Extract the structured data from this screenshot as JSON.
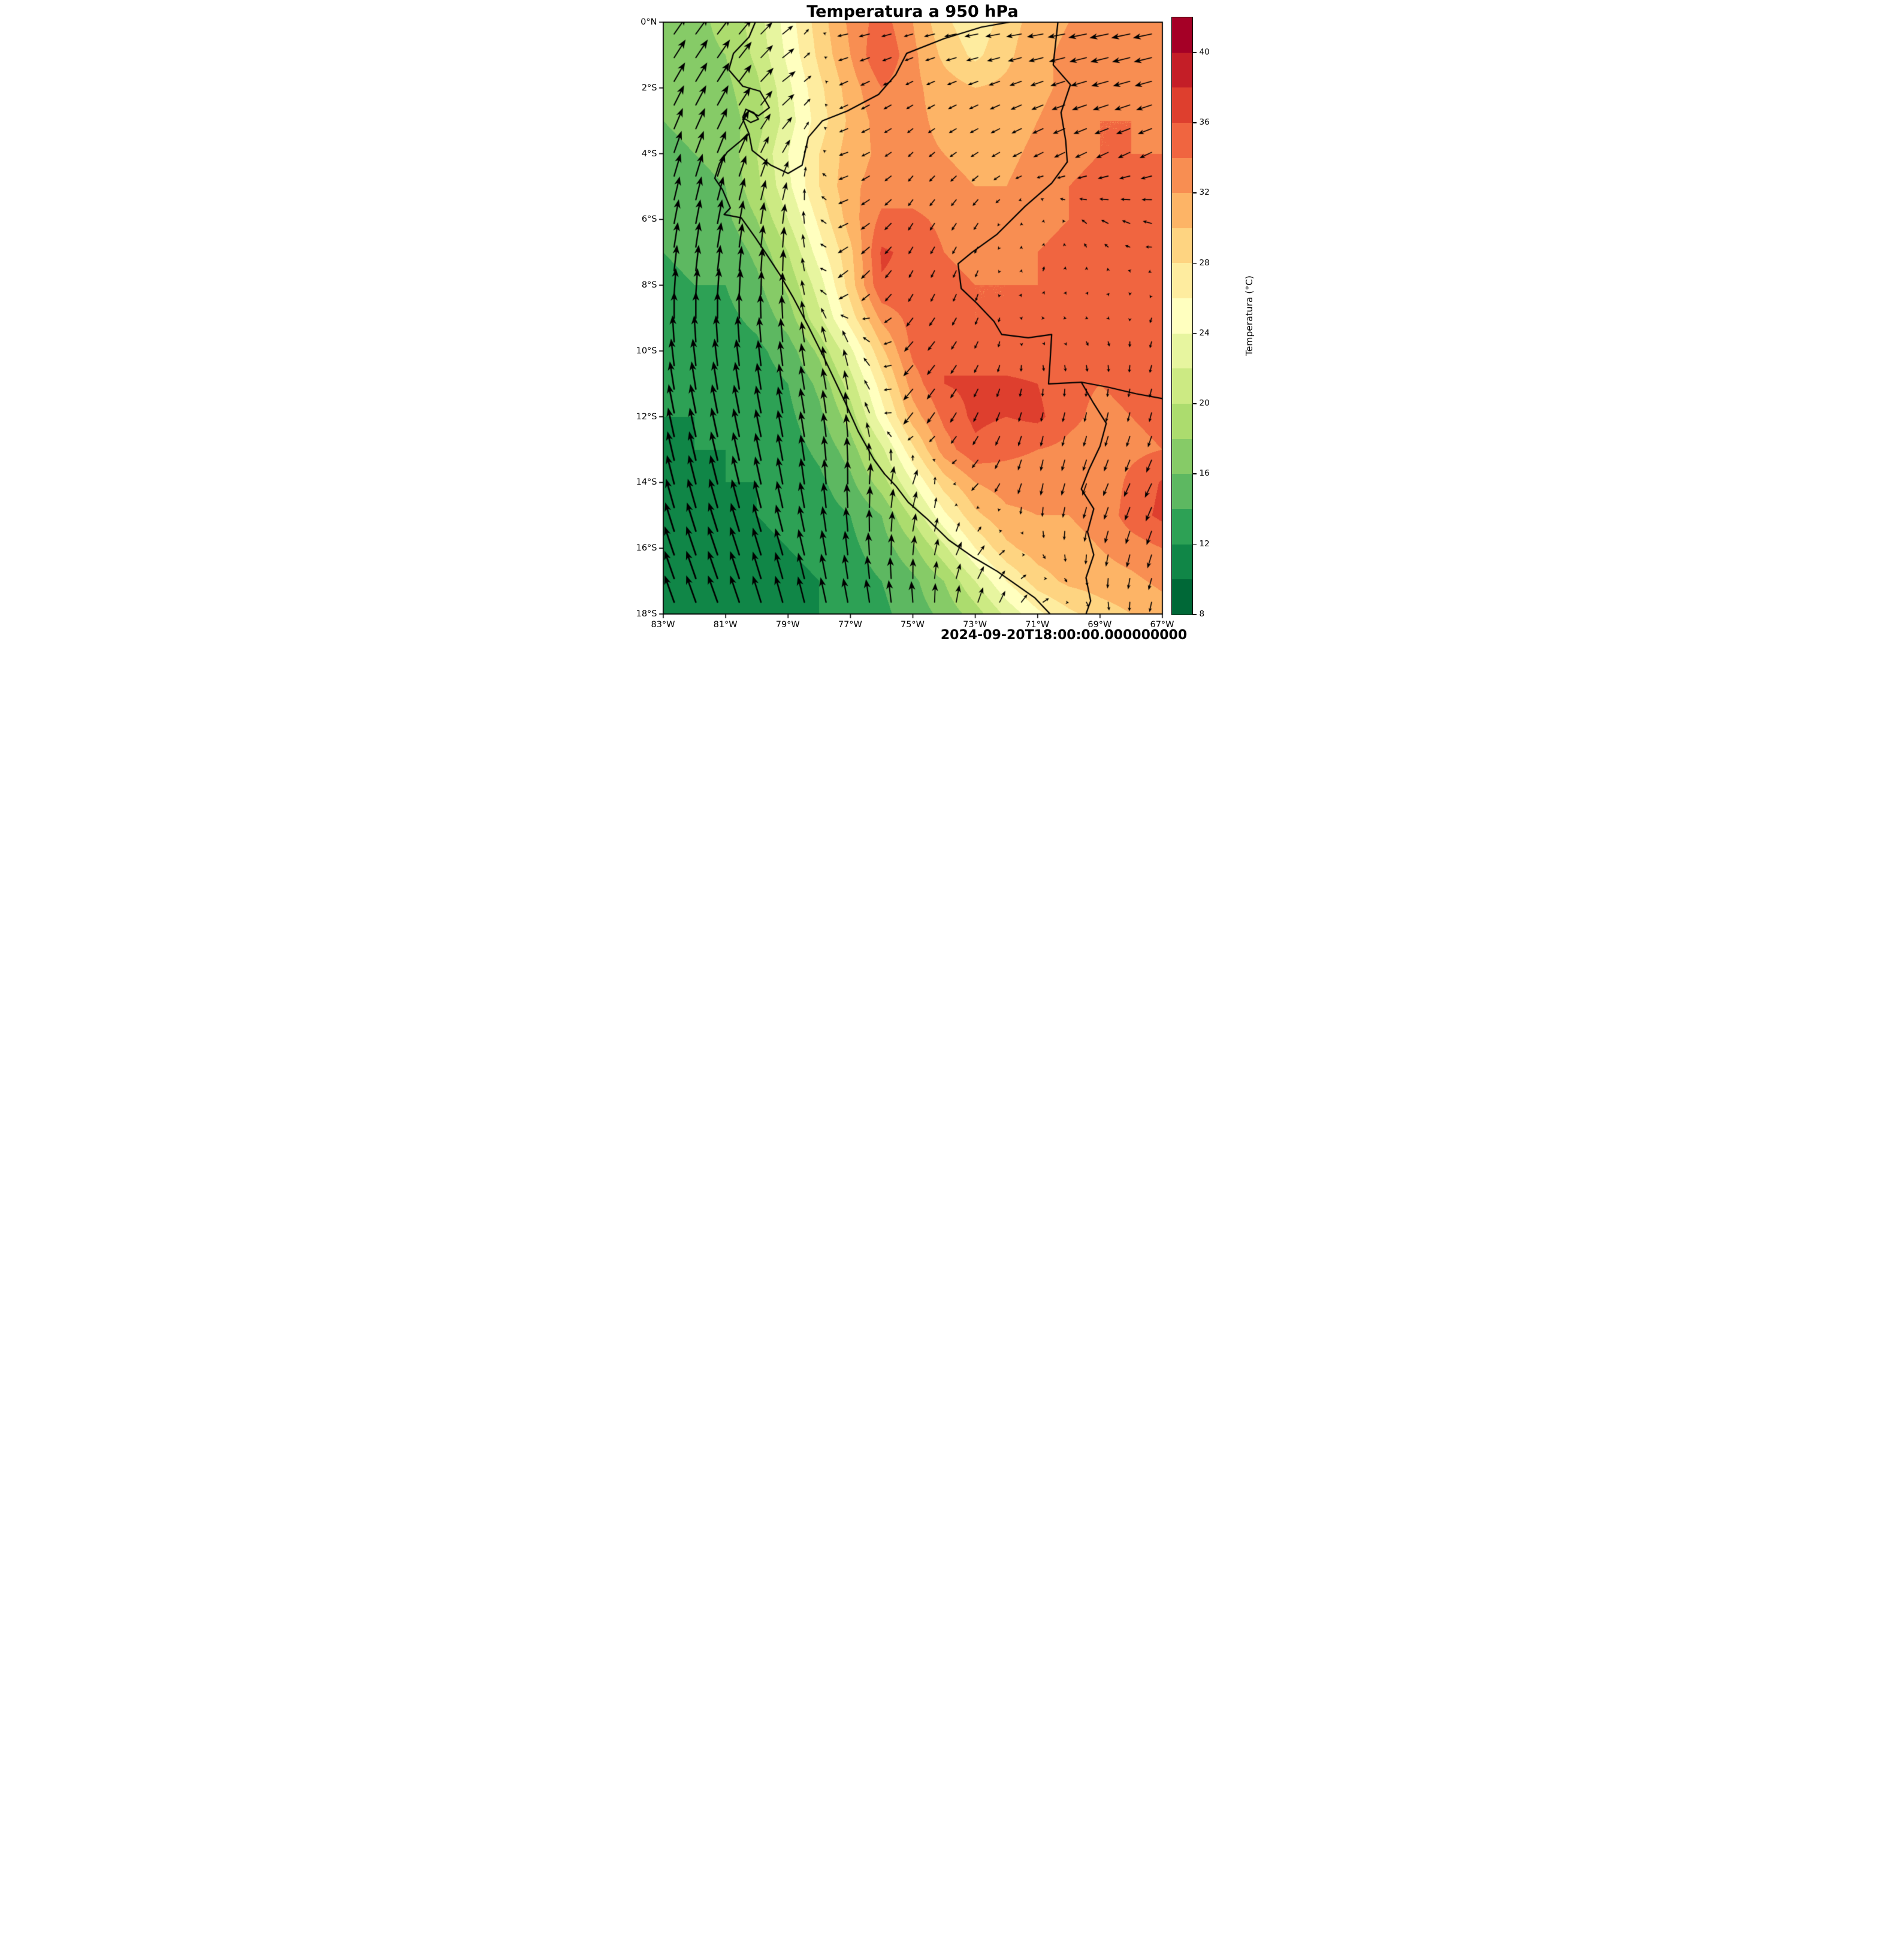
{
  "figure": {
    "title": "Temperatura a 950 hPa",
    "timestamp_label": "2024-09-20T18:00:00.000000000",
    "background": "#ffffff"
  },
  "axes": {
    "lon_range": [
      -83,
      -67
    ],
    "lat_range": [
      -18,
      0
    ],
    "x_ticks": [
      {
        "value": -83,
        "label": "83°W"
      },
      {
        "value": -81,
        "label": "81°W"
      },
      {
        "value": -79,
        "label": "79°W"
      },
      {
        "value": -77,
        "label": "77°W"
      },
      {
        "value": -75,
        "label": "75°W"
      },
      {
        "value": -73,
        "label": "73°W"
      },
      {
        "value": -71,
        "label": "71°W"
      },
      {
        "value": -69,
        "label": "69°W"
      },
      {
        "value": -67,
        "label": "67°W"
      }
    ],
    "y_ticks": [
      {
        "value": 0,
        "label": "0°N"
      },
      {
        "value": -2,
        "label": "2°S"
      },
      {
        "value": -4,
        "label": "4°S"
      },
      {
        "value": -6,
        "label": "6°S"
      },
      {
        "value": -8,
        "label": "8°S"
      },
      {
        "value": -10,
        "label": "10°S"
      },
      {
        "value": -12,
        "label": "12°S"
      },
      {
        "value": -14,
        "label": "14°S"
      },
      {
        "value": -16,
        "label": "16°S"
      },
      {
        "value": -18,
        "label": "18°S"
      }
    ]
  },
  "colorbar": {
    "label": "Temperatura (°C)",
    "level_min": 8,
    "level_max": 42,
    "level_step": 2,
    "tick_values": [
      8,
      12,
      16,
      20,
      24,
      28,
      32,
      36,
      40
    ],
    "colors": [
      "#006837",
      "#108647",
      "#2da155",
      "#5db861",
      "#86cb67",
      "#acdc6e",
      "#ccea83",
      "#e7f59f",
      "#ffffbf",
      "#feec9f",
      "#fed481",
      "#fdb466",
      "#f88e52",
      "#f06540",
      "#de3f2e",
      "#c41e27",
      "#a50026"
    ]
  },
  "chart_data": {
    "type": "heatmap",
    "title": "Temperatura a 950 hPa",
    "units": "°C",
    "colormap": "RdYlGn reversed, discrete 2°C levels 8-42",
    "lons": [
      -83,
      -82,
      -81,
      -80,
      -79,
      -78,
      -77,
      -76,
      -75,
      -74,
      -73,
      -72,
      -71,
      -70,
      -69,
      -68,
      -67
    ],
    "lats": [
      0,
      -1,
      -2,
      -3,
      -4,
      -5,
      -6,
      -7,
      -8,
      -9,
      -10,
      -11,
      -12,
      -13,
      -14,
      -15,
      -16,
      -17,
      -18
    ],
    "temperature": [
      [
        17,
        17.5,
        18.5,
        21,
        25,
        29,
        32.5,
        35,
        32,
        28.5,
        26.5,
        29,
        31,
        32,
        33,
        33,
        32.5
      ],
      [
        17,
        17.5,
        18,
        20.5,
        24.5,
        28.5,
        32,
        36,
        32.5,
        29.5,
        27.5,
        29.5,
        31.5,
        32.5,
        33,
        33.5,
        33
      ],
      [
        16.5,
        17,
        17.5,
        19.5,
        23.5,
        27.5,
        31,
        34,
        32.5,
        31,
        30,
        30.5,
        31.5,
        32.5,
        33.5,
        34,
        33.5
      ],
      [
        16,
        16.5,
        17,
        19,
        23,
        27,
        30.5,
        33,
        32.5,
        31.5,
        31,
        31,
        32,
        33,
        34,
        34,
        33.5
      ],
      [
        15.5,
        16,
        16.5,
        20,
        24,
        28,
        31,
        32.5,
        32.5,
        32,
        31.5,
        31.5,
        32.5,
        33.5,
        34,
        34,
        34
      ],
      [
        15,
        15.5,
        16,
        19.5,
        23.5,
        28,
        31.5,
        33,
        33,
        32.5,
        32,
        32,
        33,
        34,
        34.5,
        34.5,
        34
      ],
      [
        14.5,
        15,
        15.5,
        18,
        22,
        26.5,
        31,
        34.5,
        34.5,
        33.5,
        33,
        33,
        33.5,
        34,
        34.5,
        35,
        34.5
      ],
      [
        14,
        14.5,
        14.5,
        16.5,
        20,
        25,
        29.5,
        36.3,
        35.5,
        34,
        33.5,
        33.5,
        34,
        34.5,
        34.5,
        35,
        34.5
      ],
      [
        13.5,
        14,
        14,
        15.5,
        18.5,
        23,
        29,
        35.8,
        35.5,
        34.5,
        34,
        34,
        34,
        34.5,
        34.5,
        34.5,
        34
      ],
      [
        13,
        13.5,
        13.5,
        14.5,
        17,
        21.5,
        27,
        32.5,
        34.8,
        34.5,
        34,
        34,
        34.5,
        34.5,
        34.5,
        34.5,
        34
      ],
      [
        12.5,
        13,
        13,
        13.5,
        15,
        18.5,
        23.5,
        29.5,
        34.5,
        36,
        34.5,
        34.5,
        34.5,
        34.5,
        34.5,
        34.5,
        34
      ],
      [
        12,
        12.5,
        12.5,
        13,
        14,
        16.5,
        21,
        27,
        33,
        36,
        36.5,
        36.5,
        36,
        34.5,
        34,
        34.5,
        34
      ],
      [
        12,
        12,
        12.5,
        12.5,
        13.5,
        15.5,
        19,
        25,
        31,
        34.5,
        36.5,
        36,
        36.5,
        34.5,
        33.5,
        34,
        34.5
      ],
      [
        11.5,
        12,
        12,
        12.5,
        13,
        14.5,
        17,
        21.5,
        27.5,
        33,
        35.5,
        34.5,
        34,
        33.5,
        33,
        33.5,
        34
      ],
      [
        11.5,
        11.5,
        12,
        12,
        12.5,
        13.5,
        15.5,
        19,
        24,
        29,
        32,
        33,
        33,
        32.5,
        32.5,
        34.5,
        36.2
      ],
      [
        11,
        11.5,
        11.5,
        12,
        12.5,
        13,
        14,
        16,
        20.5,
        25.5,
        29.5,
        31.5,
        32,
        32,
        32.5,
        35,
        36.5
      ],
      [
        11,
        11,
        11.5,
        11.5,
        12,
        12.5,
        13.5,
        15,
        17.5,
        21.5,
        26,
        29.5,
        31,
        31.5,
        32,
        33,
        34
      ],
      [
        10.5,
        11,
        11,
        11.5,
        11.5,
        12,
        13,
        14,
        15.5,
        18,
        22,
        26,
        29,
        30.5,
        31,
        31.5,
        32.5
      ],
      [
        10.5,
        10.5,
        11,
        11,
        11.5,
        12,
        12.5,
        13.5,
        15,
        16.5,
        19,
        22.5,
        25.5,
        27.5,
        29,
        30,
        31
      ]
    ],
    "wind_quiver": {
      "lons": [
        -83,
        -81,
        -79,
        -77,
        -75,
        -73,
        -71,
        -69,
        -67
      ],
      "lats": [
        0,
        -2,
        -4,
        -6,
        -8,
        -10,
        -12,
        -14,
        -16,
        -18
      ],
      "u": [
        [
          2.5,
          2.8,
          2.0,
          -2.5,
          -2.0,
          -3.0,
          -3.5,
          -4.0,
          -4.0
        ],
        [
          2.2,
          2.5,
          2.8,
          -2.0,
          -1.5,
          -2.0,
          -2.5,
          -3.5,
          -3.5
        ],
        [
          1.5,
          1.8,
          1.5,
          -2.0,
          -1.0,
          -1.5,
          -2.0,
          -2.5,
          -2.5
        ],
        [
          1.0,
          1.0,
          0.5,
          -2.2,
          -1.0,
          -1.0,
          0.3,
          -1.5,
          -2.0
        ],
        [
          0.5,
          0.5,
          0.0,
          -2.2,
          -0.8,
          -0.5,
          0.3,
          0.4,
          -0.5
        ],
        [
          -0.5,
          -0.5,
          -0.5,
          -1.0,
          -2.0,
          -0.8,
          0.4,
          0.4,
          -0.5
        ],
        [
          -1.2,
          -1.2,
          -1.0,
          -0.5,
          -2.0,
          -1.0,
          -0.5,
          -0.5,
          -0.5
        ],
        [
          -1.5,
          -1.5,
          -1.0,
          0.0,
          1.0,
          -1.5,
          -0.5,
          -1.0,
          -1.5
        ],
        [
          -2.0,
          -2.0,
          -1.5,
          -0.5,
          0.5,
          1.5,
          0.5,
          -0.5,
          -1.0
        ],
        [
          -2.0,
          -2.0,
          -1.5,
          -1.0,
          -0.5,
          1.0,
          1.5,
          0.5,
          -0.5
        ]
      ],
      "v": [
        [
          3.5,
          3.5,
          1.5,
          -0.5,
          -0.5,
          -0.5,
          -0.5,
          -0.8,
          -0.8
        ],
        [
          4.0,
          4.0,
          2.0,
          -1.0,
          -0.8,
          -0.8,
          -1.0,
          -1.0,
          -1.0
        ],
        [
          4.5,
          4.5,
          2.5,
          -0.8,
          -1.0,
          -1.0,
          -1.0,
          -1.2,
          -1.2
        ],
        [
          5.0,
          5.0,
          4.0,
          -1.2,
          -1.5,
          -1.5,
          0.8,
          0.8,
          0.5
        ],
        [
          5.5,
          5.5,
          4.5,
          -2.0,
          -1.5,
          -1.5,
          1.0,
          0.8,
          -1.0
        ],
        [
          5.5,
          5.5,
          5.0,
          3.0,
          -2.2,
          -1.5,
          -1.0,
          -1.2,
          -1.5
        ],
        [
          6.0,
          6.0,
          5.5,
          4.5,
          -2.5,
          -2.0,
          -2.0,
          -2.0,
          -2.0
        ],
        [
          6.0,
          6.0,
          5.5,
          5.0,
          3.0,
          -1.5,
          -2.5,
          -2.5,
          -3.0
        ],
        [
          6.0,
          6.0,
          5.5,
          5.0,
          4.0,
          2.0,
          -1.0,
          -2.5,
          -3.0
        ],
        [
          5.5,
          5.5,
          5.5,
          5.0,
          4.5,
          3.5,
          1.5,
          -1.5,
          -2.0
        ]
      ]
    },
    "borders": {
      "coastline": [
        [
          -80.05,
          0.0
        ],
        [
          -80.25,
          -0.45
        ],
        [
          -80.75,
          -0.95
        ],
        [
          -80.9,
          -1.45
        ],
        [
          -80.45,
          -1.95
        ],
        [
          -79.9,
          -2.1
        ],
        [
          -79.6,
          -2.6
        ],
        [
          -79.95,
          -2.85
        ],
        [
          -80.25,
          -2.7
        ],
        [
          -80.45,
          -2.95
        ],
        [
          -80.25,
          -3.4
        ],
        [
          -80.95,
          -3.95
        ],
        [
          -81.2,
          -4.3
        ],
        [
          -81.35,
          -4.75
        ],
        [
          -81.1,
          -5.1
        ],
        [
          -80.85,
          -5.65
        ],
        [
          -81.05,
          -5.85
        ],
        [
          -80.5,
          -5.95
        ],
        [
          -80.05,
          -6.55
        ],
        [
          -79.7,
          -7.05
        ],
        [
          -79.25,
          -7.7
        ],
        [
          -78.85,
          -8.35
        ],
        [
          -78.35,
          -9.25
        ],
        [
          -77.85,
          -10.2
        ],
        [
          -77.55,
          -10.8
        ],
        [
          -77.15,
          -11.6
        ],
        [
          -76.75,
          -12.45
        ],
        [
          -76.25,
          -13.3
        ],
        [
          -75.9,
          -13.75
        ],
        [
          -75.55,
          -14.1
        ],
        [
          -75.15,
          -14.6
        ],
        [
          -74.55,
          -15.1
        ],
        [
          -73.85,
          -15.75
        ],
        [
          -73.1,
          -16.25
        ],
        [
          -72.3,
          -16.7
        ],
        [
          -71.7,
          -17.1
        ],
        [
          -71.1,
          -17.5
        ],
        [
          -70.6,
          -18.0
        ]
      ],
      "puna_island": [
        [
          -80.35,
          -2.65
        ],
        [
          -80.1,
          -2.75
        ],
        [
          -79.95,
          -2.95
        ],
        [
          -80.2,
          -3.05
        ],
        [
          -80.45,
          -2.9
        ],
        [
          -80.35,
          -2.65
        ]
      ],
      "ecuador_peru": [
        [
          -80.25,
          -3.4
        ],
        [
          -80.15,
          -3.9
        ],
        [
          -79.55,
          -4.35
        ],
        [
          -79.0,
          -4.6
        ],
        [
          -78.55,
          -4.35
        ],
        [
          -78.35,
          -3.5
        ],
        [
          -77.9,
          -3.0
        ],
        [
          -77.1,
          -2.7
        ],
        [
          -76.1,
          -2.2
        ],
        [
          -75.55,
          -1.6
        ],
        [
          -75.2,
          -0.95
        ]
      ],
      "peru_colombia_putumayo": [
        [
          -75.2,
          -0.95
        ],
        [
          -74.0,
          -0.5
        ],
        [
          -72.8,
          -0.15
        ],
        [
          -71.9,
          0.0
        ]
      ],
      "leticia_trapezoid": [
        [
          -70.35,
          0.0
        ],
        [
          -70.5,
          -1.3
        ],
        [
          -69.95,
          -1.9
        ],
        [
          -70.25,
          -2.75
        ],
        [
          -70.1,
          -3.6
        ],
        [
          -70.05,
          -4.25
        ]
      ],
      "peru_brazil": [
        [
          -70.05,
          -4.25
        ],
        [
          -70.55,
          -4.9
        ],
        [
          -71.4,
          -5.6
        ],
        [
          -72.3,
          -6.45
        ],
        [
          -73.1,
          -7.0
        ],
        [
          -73.55,
          -7.35
        ],
        [
          -73.45,
          -8.1
        ],
        [
          -72.95,
          -8.55
        ],
        [
          -72.4,
          -9.1
        ],
        [
          -72.15,
          -9.5
        ],
        [
          -71.3,
          -9.6
        ],
        [
          -70.55,
          -9.5
        ],
        [
          -70.6,
          -10.3
        ],
        [
          -70.65,
          -11.0
        ],
        [
          -69.6,
          -10.95
        ]
      ],
      "bolivia_brazil": [
        [
          -69.6,
          -10.95
        ],
        [
          -68.75,
          -11.1
        ],
        [
          -67.85,
          -11.3
        ],
        [
          -67.0,
          -11.45
        ]
      ],
      "peru_bolivia": [
        [
          -69.6,
          -10.95
        ],
        [
          -69.2,
          -11.6
        ],
        [
          -68.8,
          -12.2
        ],
        [
          -69.0,
          -12.9
        ],
        [
          -69.35,
          -13.6
        ],
        [
          -69.6,
          -14.2
        ],
        [
          -69.2,
          -14.8
        ],
        [
          -69.4,
          -15.5
        ],
        [
          -69.2,
          -16.2
        ],
        [
          -69.45,
          -16.9
        ],
        [
          -69.3,
          -17.6
        ],
        [
          -69.45,
          -18.0
        ]
      ]
    }
  }
}
